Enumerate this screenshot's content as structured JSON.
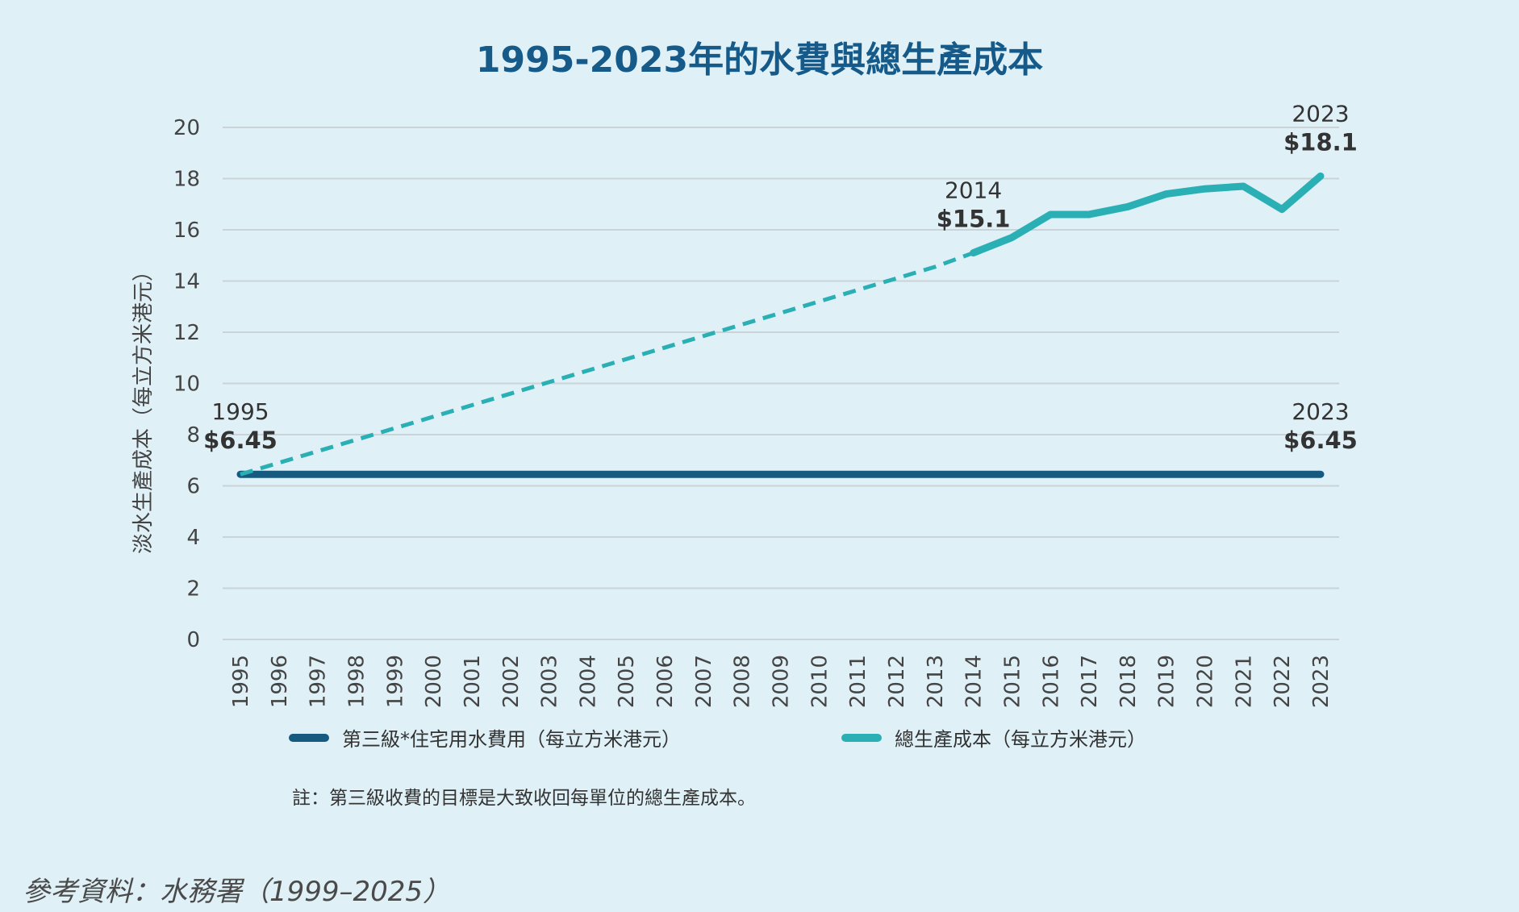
{
  "title": "1995-2023年的水費與總生產成本",
  "chart_data": {
    "type": "line",
    "ylabel": "淡水生產成本（每立方米港元）",
    "xlabel": "",
    "ylim": [
      0,
      20
    ],
    "yticks": [
      0,
      2,
      4,
      6,
      8,
      10,
      12,
      14,
      16,
      18,
      20
    ],
    "grid": true,
    "categories": [
      "1995",
      "1996",
      "1997",
      "1998",
      "1999",
      "2000",
      "2001",
      "2002",
      "2003",
      "2004",
      "2005",
      "2006",
      "2007",
      "2008",
      "2009",
      "2010",
      "2011",
      "2012",
      "2013",
      "2014",
      "2015",
      "2016",
      "2017",
      "2018",
      "2019",
      "2020",
      "2021",
      "2022",
      "2023"
    ],
    "series": [
      {
        "name": "第三級*住宅用水費用（每立方米港元）",
        "color": "#175a80",
        "values": [
          6.45,
          6.45,
          6.45,
          6.45,
          6.45,
          6.45,
          6.45,
          6.45,
          6.45,
          6.45,
          6.45,
          6.45,
          6.45,
          6.45,
          6.45,
          6.45,
          6.45,
          6.45,
          6.45,
          6.45,
          6.45,
          6.45,
          6.45,
          6.45,
          6.45,
          6.45,
          6.45,
          6.45,
          6.45
        ]
      },
      {
        "name": "總生產成本（每立方米港元）",
        "color": "#2aafb5",
        "dashed_until": "2014",
        "values": [
          6.45,
          6.9,
          7.35,
          7.8,
          8.25,
          8.7,
          9.15,
          9.6,
          10.05,
          10.5,
          10.95,
          11.4,
          11.85,
          12.3,
          12.75,
          13.2,
          13.65,
          14.1,
          14.55,
          15.1,
          15.7,
          16.6,
          16.6,
          16.9,
          17.4,
          17.6,
          17.7,
          16.8,
          18.1
        ]
      }
    ],
    "annotations": [
      {
        "year": "1995",
        "label": "$6.45",
        "series": 0
      },
      {
        "year": "2014",
        "label": "$15.1",
        "series": 1
      },
      {
        "year": "2023",
        "label": "$18.1",
        "series": 1
      },
      {
        "year": "2023",
        "label": "$6.45",
        "series": 0
      }
    ]
  },
  "legend": [
    {
      "label": "第三級*住宅用水費用（每立方米港元）",
      "color": "#175a80"
    },
    {
      "label": "總生產成本（每立方米港元）",
      "color": "#2aafb5"
    }
  ],
  "note": "註：第三級收費的目標是大致收回每單位的總生產成本。",
  "source": "參考資料：水務署（1999–2025）"
}
